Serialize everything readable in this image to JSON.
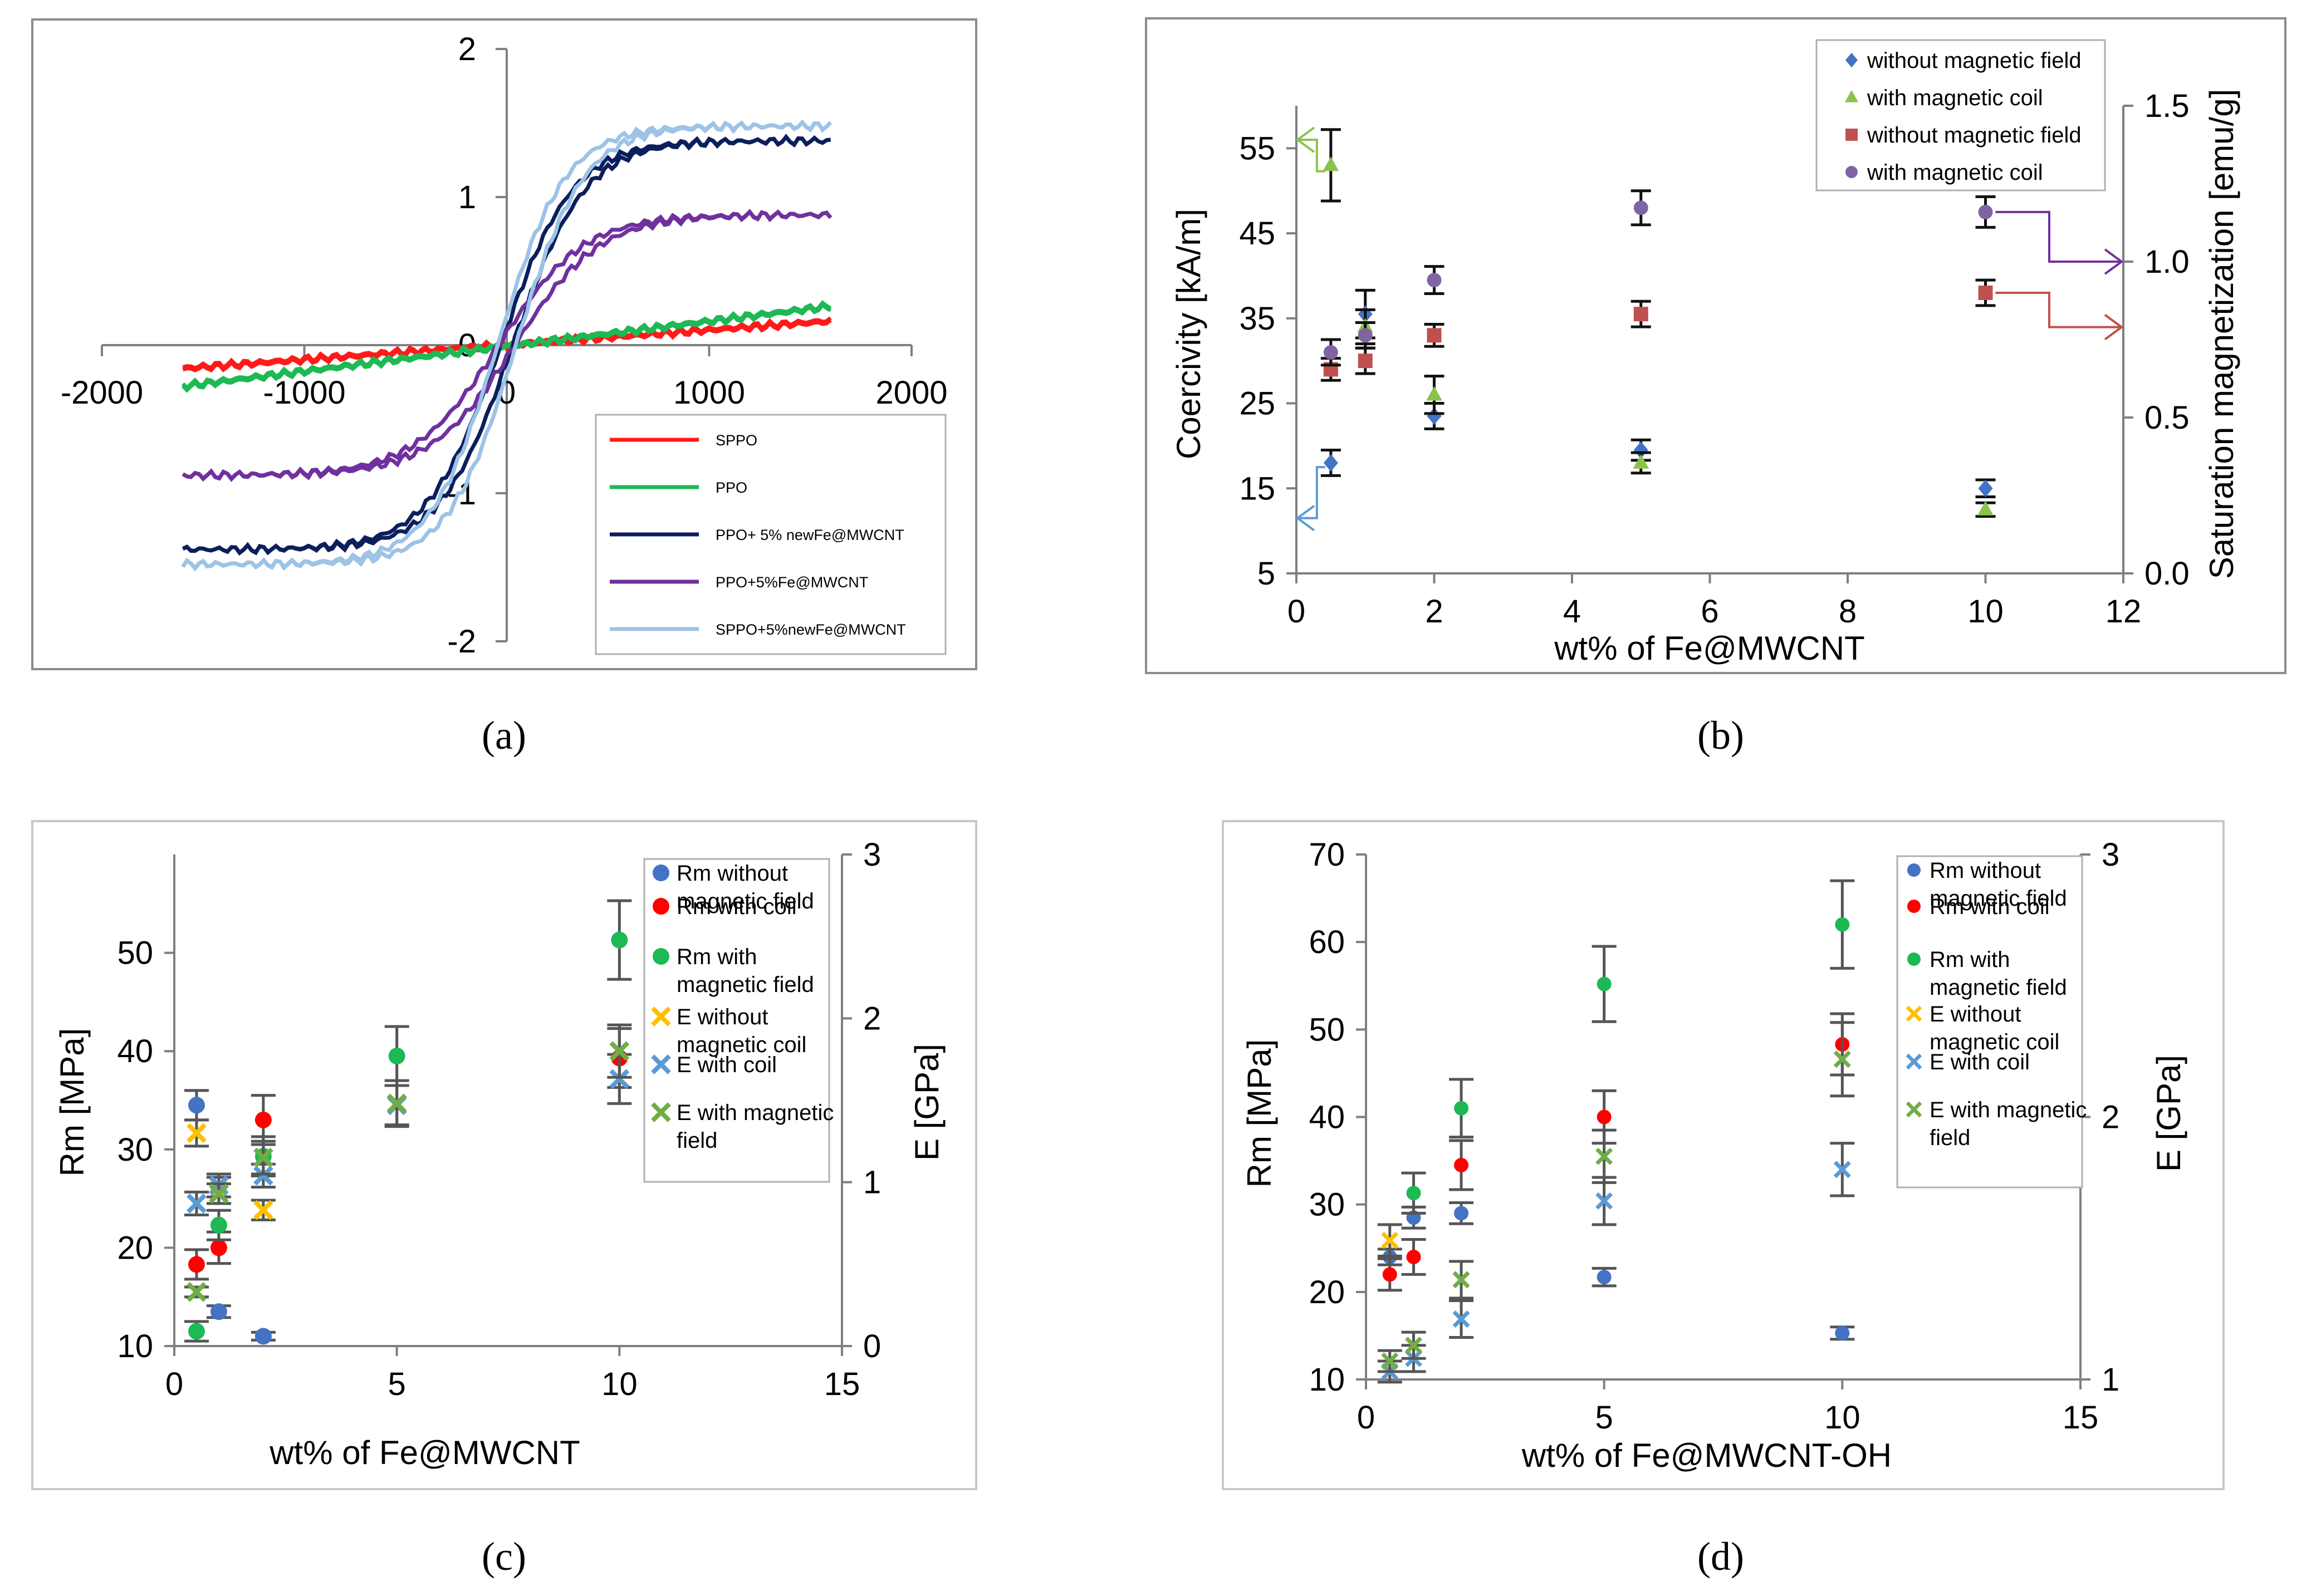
{
  "captions": {
    "a": "(a)",
    "b": "(b)",
    "c": "(c)",
    "d": "(d)"
  },
  "chart_data": [
    {
      "id": "a",
      "type": "line",
      "title": "",
      "xlabel": "",
      "ylabel": "",
      "xlim": [
        -2000,
        2000
      ],
      "ylim": [
        -2,
        2
      ],
      "x_ticks": [
        "-2000",
        "-1000",
        "0",
        "1000",
        "2000"
      ],
      "y_ticks": [
        "-2",
        "-1",
        "0",
        "1",
        "2"
      ],
      "legend_position": "bottom-right",
      "series": [
        {
          "name": "SPPO",
          "color": "#ff1a1a",
          "Ms": 0.16,
          "Hc": 0,
          "k": 0.0006,
          "lin": true
        },
        {
          "name": "PPO",
          "color": "#1db954",
          "Ms": 0.27,
          "Hc": 0,
          "k": 0.0006,
          "lin": true
        },
        {
          "name": "PPO+ 5% newFe@MWCNT",
          "color": "#0b1f5c",
          "Ms": 1.38,
          "Hc": 30,
          "k": 0.0028
        },
        {
          "name": "PPO+5%Fe@MWCNT",
          "color": "#7030a0",
          "Ms": 0.88,
          "Hc": 40,
          "k": 0.0024
        },
        {
          "name": "SPPO+5%newFe@MWCNT",
          "color": "#9dc3e6",
          "Ms": 1.48,
          "Hc": 45,
          "k": 0.003
        }
      ]
    },
    {
      "id": "b",
      "type": "scatter",
      "xlabel": "wt% of Fe@MWCNT",
      "ylabel": "Coercivity [kA/m]",
      "y2label": "Saturation magnetization [emu/g]",
      "xlim": [
        0,
        12
      ],
      "ylim": [
        5,
        60
      ],
      "y2lim": [
        0,
        1.5
      ],
      "x_ticks": [
        "0",
        "2",
        "4",
        "6",
        "8",
        "10",
        "12"
      ],
      "y_ticks": [
        "5",
        "15",
        "25",
        "35",
        "45",
        "55"
      ],
      "y2_ticks": [
        "0.0",
        "0.5",
        "1.0",
        "1.5"
      ],
      "legend_position": "top-right",
      "series": [
        {
          "name": "without magnetic field",
          "marker": "diamond",
          "color": "#4472c4",
          "axis": "left",
          "x": [
            0.5,
            1,
            2,
            5,
            10
          ],
          "y": [
            18,
            35.5,
            23.5,
            19.5,
            15
          ],
          "err": [
            1.5,
            2.8,
            1.5,
            1.2,
            1.0
          ]
        },
        {
          "name": "with magnetic coil",
          "marker": "triangle",
          "color": "#8bc34a",
          "axis": "left",
          "x": [
            0.5,
            1,
            2,
            5,
            10
          ],
          "y": [
            53,
            34,
            26,
            18,
            12.5
          ],
          "err": [
            4.2,
            2.0,
            2.2,
            1.2,
            0.8
          ]
        },
        {
          "name": "without magnetic field",
          "marker": "square",
          "color": "#c0504d",
          "axis": "left",
          "x": [
            0.5,
            1,
            2,
            5,
            10
          ],
          "y": [
            29,
            30,
            33,
            35.5,
            38
          ],
          "err": [
            1.3,
            1.5,
            1.3,
            1.5,
            1.5
          ]
        },
        {
          "name": "with magnetic coil",
          "marker": "circle",
          "color": "#8064a2",
          "axis": "left",
          "x": [
            0.5,
            1,
            2,
            5,
            10
          ],
          "y": [
            31,
            33,
            39.5,
            48,
            47.5
          ],
          "err": [
            1.5,
            1.5,
            1.6,
            2.0,
            1.8
          ]
        }
      ]
    },
    {
      "id": "c",
      "type": "scatter",
      "xlabel": "wt% of Fe@MWCNT",
      "ylabel": "Rm [MPa]",
      "y2label": "E [GPa]",
      "xlim": [
        0,
        15
      ],
      "ylim": [
        10,
        60
      ],
      "y2lim": [
        0,
        3
      ],
      "x_ticks": [
        "0",
        "5",
        "10",
        "15"
      ],
      "y_ticks": [
        "10",
        "20",
        "30",
        "40",
        "50"
      ],
      "y2_ticks": [
        "0",
        "1",
        "2",
        "3"
      ],
      "legend_position": "top-right",
      "series": [
        {
          "name": "Rm without magnetic field",
          "marker": "circle",
          "color": "#4472c4",
          "axis": "left",
          "x": [
            0.5,
            1,
            2
          ],
          "y": [
            34.5,
            13.5,
            11
          ],
          "err": [
            1.5,
            0.6,
            0.4
          ]
        },
        {
          "name": "Rm with coil",
          "marker": "circle",
          "color": "#ff0000",
          "axis": "left",
          "x": [
            0.5,
            1,
            2,
            10
          ],
          "y": [
            18.3,
            20,
            33,
            39.3
          ],
          "err": [
            1.5,
            1.6,
            2.5,
            3.0
          ]
        },
        {
          "name": "Rm with magnetic field",
          "marker": "circle",
          "color": "#1db954",
          "axis": "left",
          "x": [
            0.5,
            1,
            2,
            5,
            10
          ],
          "y": [
            11.5,
            22.3,
            29.3,
            39.5,
            51.3
          ],
          "err": [
            1.0,
            1.5,
            2.0,
            3.0,
            4.0
          ]
        },
        {
          "name": "E without magnetic coil",
          "marker": "x",
          "color": "#ffc000",
          "axis": "right",
          "x": [
            0.5,
            1,
            2
          ],
          "y": [
            1.3,
            0.95,
            0.83
          ],
          "err": [
            0.08,
            0.08,
            0.06
          ]
        },
        {
          "name": "E with coil",
          "marker": "x",
          "color": "#5b9bd5",
          "axis": "right",
          "x": [
            0.5,
            1,
            2,
            5,
            10
          ],
          "y": [
            0.87,
            0.98,
            1.04,
            1.47,
            1.63
          ],
          "err": [
            0.07,
            0.07,
            0.07,
            0.12,
            0.15
          ]
        },
        {
          "name": "E with magnetic field",
          "marker": "x",
          "color": "#70ad47",
          "axis": "right",
          "x": [
            0.5,
            1,
            2,
            5,
            10
          ],
          "y": [
            0.33,
            0.93,
            1.15,
            1.48,
            1.8
          ],
          "err": [
            0.03,
            0.06,
            0.1,
            0.14,
            0.16
          ]
        }
      ]
    },
    {
      "id": "d",
      "type": "scatter",
      "xlabel": "wt% of Fe@MWCNT-OH",
      "ylabel": "Rm [MPa]",
      "y2label": "E [GPa]",
      "xlim": [
        0,
        15
      ],
      "ylim": [
        10,
        70
      ],
      "y2lim": [
        1,
        3
      ],
      "x_ticks": [
        "0",
        "5",
        "10",
        "15"
      ],
      "y_ticks": [
        "10",
        "20",
        "30",
        "40",
        "50",
        "60",
        "70"
      ],
      "y2_ticks": [
        "1",
        "2",
        "3"
      ],
      "legend_position": "top-right",
      "series": [
        {
          "name": "Rm without magnetic field",
          "marker": "circle",
          "color": "#4472c4",
          "axis": "left",
          "x": [
            0.5,
            1,
            2,
            5,
            10
          ],
          "y": [
            24,
            28.5,
            29,
            21.7,
            15.3
          ],
          "err": [
            0.9,
            1.2,
            1.2,
            1.0,
            0.7
          ]
        },
        {
          "name": "Rm with coil",
          "marker": "circle",
          "color": "#ff0000",
          "axis": "left",
          "x": [
            0.5,
            1,
            2,
            5,
            10
          ],
          "y": [
            22,
            24,
            34.5,
            40,
            48.3
          ],
          "err": [
            1.8,
            2.0,
            2.8,
            3.0,
            3.5
          ]
        },
        {
          "name": "Rm with magnetic field",
          "marker": "circle",
          "color": "#1db954",
          "axis": "left",
          "x": [
            1,
            2,
            5,
            10
          ],
          "y": [
            31.3,
            41,
            55.2,
            62
          ],
          "err": [
            2.3,
            3.3,
            4.3,
            5.0
          ]
        },
        {
          "name": "E without magnetic coil",
          "marker": "x",
          "color": "#ffc000",
          "axis": "right",
          "x": [
            0.5
          ],
          "y": [
            1.53
          ],
          "err": [
            0.06
          ]
        },
        {
          "name": "E with coil",
          "marker": "x",
          "color": "#5b9bd5",
          "axis": "right",
          "x": [
            0.5,
            1,
            2,
            5,
            10
          ],
          "y": [
            1.03,
            1.08,
            1.23,
            1.68,
            1.8
          ],
          "err": [
            0.04,
            0.05,
            0.07,
            0.09,
            0.1
          ]
        },
        {
          "name": "E with magnetic field",
          "marker": "x",
          "color": "#70ad47",
          "axis": "right",
          "x": [
            0.5,
            1,
            2,
            5,
            10
          ],
          "y": [
            1.07,
            1.13,
            1.38,
            1.85,
            2.22
          ],
          "err": [
            0.04,
            0.05,
            0.07,
            0.1,
            0.14
          ]
        }
      ]
    }
  ]
}
